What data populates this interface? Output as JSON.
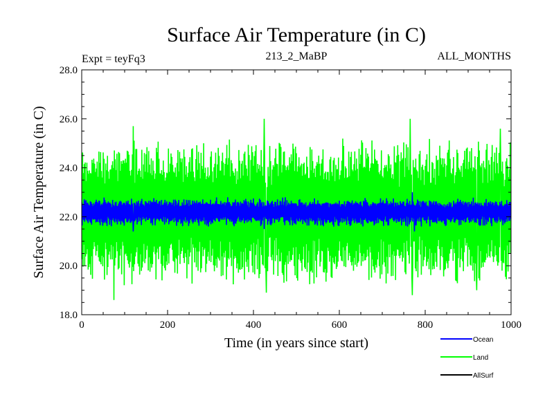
{
  "chart_data": {
    "type": "line",
    "title": "Surface Air Temperature (in C)",
    "left_subtitle": "Expt = teyFq3",
    "center_subtitle": "213_2_MaBP",
    "right_subtitle": "ALL_MONTHS",
    "xlabel": "Time (in years since start)",
    "ylabel": "Surface Air Temperature (in C)",
    "xlim": [
      0,
      1000
    ],
    "ylim": [
      18.0,
      28.0
    ],
    "x_ticks": [
      0,
      200,
      400,
      600,
      800,
      1000
    ],
    "x_tick_labels": [
      "0",
      "200",
      "400",
      "600",
      "800",
      "1000"
    ],
    "y_ticks": [
      18,
      20,
      22,
      24,
      26,
      28
    ],
    "y_tick_labels": [
      "18.0",
      "20.0",
      "22.0",
      "24.0",
      "26.0",
      "28.0"
    ],
    "series": [
      {
        "name": "Land",
        "color": "#00ff00",
        "mean": 22.2,
        "band_low": 19.8,
        "band_high": 24.6,
        "typical_min": 19.2,
        "typical_max": 25.2,
        "extremes": [
          {
            "x": 75,
            "y": 18.6
          },
          {
            "x": 120,
            "y": 25.7
          },
          {
            "x": 425,
            "y": 26.0
          },
          {
            "x": 430,
            "y": 18.9
          },
          {
            "x": 765,
            "y": 26.0
          },
          {
            "x": 770,
            "y": 18.8
          },
          {
            "x": 920,
            "y": 19.0
          },
          {
            "x": 975,
            "y": 25.6
          }
        ]
      },
      {
        "name": "Ocean",
        "color": "#0000ff",
        "mean": 22.2,
        "band_low": 21.7,
        "band_high": 22.6,
        "typical_min": 21.6,
        "typical_max": 22.8,
        "extremes": [
          {
            "x": 120,
            "y": 21.4
          },
          {
            "x": 425,
            "y": 21.5
          },
          {
            "x": 770,
            "y": 23.0
          },
          {
            "x": 775,
            "y": 21.4
          }
        ]
      },
      {
        "name": "AllSurf",
        "color": "#000000",
        "visible": false
      }
    ],
    "legend": {
      "position": "bottom-right",
      "entries": [
        {
          "label": "Ocean",
          "color": "#0000ff"
        },
        {
          "label": "Land",
          "color": "#00ff00"
        },
        {
          "label": "AllSurf",
          "color": "#000000"
        }
      ]
    }
  }
}
